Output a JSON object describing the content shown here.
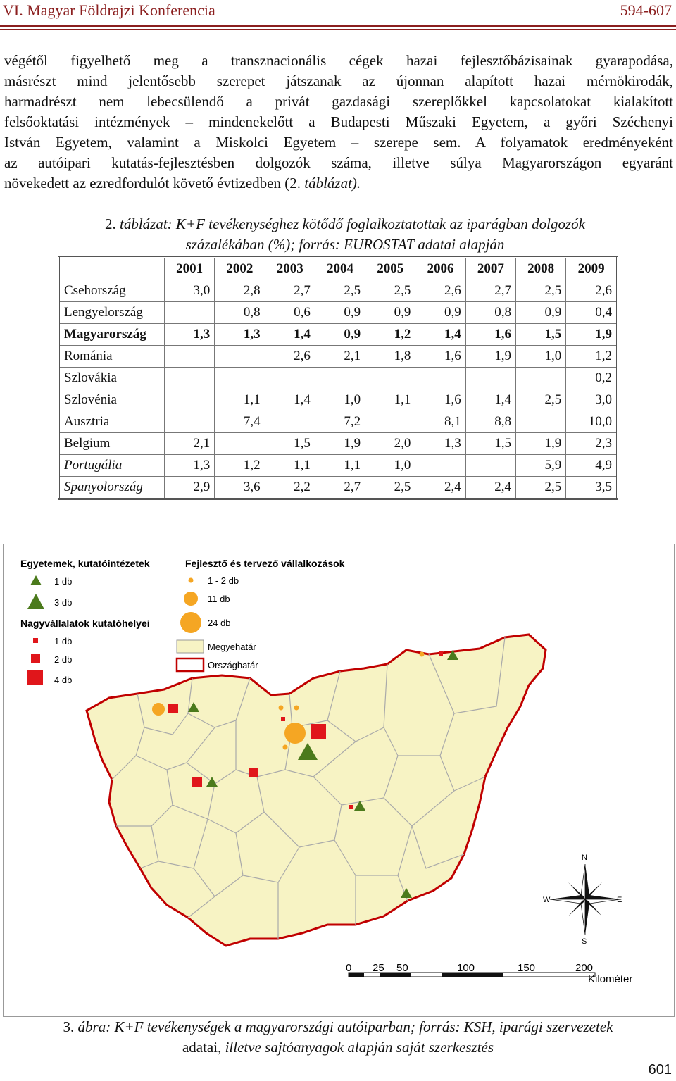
{
  "header": {
    "conference": "VI. Magyar Földrajzi Konferencia",
    "pages": "594-607"
  },
  "paragraph": {
    "lines": [
      "végétől figyelhető meg a transznacionális cégek hazai fejlesztőbázisainak gyarapodása,",
      "másrészt mind jelentősebb szerepet játszanak az újonnan alapított hazai mérnökirodák,",
      "harmadrészt nem lebecsülendő a privát gazdasági szereplőkkel kapcsolatokat kialakított",
      "felsőoktatási intézmények – mindenekelőtt a Budapesti Műszaki Egyetem, a győri Széchenyi",
      "István Egyetem, valamint a Miskolci Egyetem – szerepe sem. A folyamatok eredményeként",
      "az autóipari kutatás-fejlesztésben dolgozók száma, illetve súlya Magyarországon egyaránt"
    ],
    "last_line_text": "növekedett az ezredfordulót követő évtizedben (2. ",
    "last_line_italic": "táblázat)."
  },
  "table_caption": {
    "number": "2. ",
    "line1": "táblázat: K+F tevékenységhez kötődő foglalkoztatottak az iparágban dolgozók",
    "line2": "százalékában (%); forrás: EUROSTAT adatai alapján"
  },
  "table": {
    "years": [
      "2001",
      "2002",
      "2003",
      "2004",
      "2005",
      "2006",
      "2007",
      "2008",
      "2009"
    ],
    "rows": [
      {
        "name": "Csehország",
        "values": [
          "3,0",
          "2,8",
          "2,7",
          "2,5",
          "2,5",
          "2,6",
          "2,7",
          "2,5",
          "2,6"
        ],
        "style": "normal"
      },
      {
        "name": "Lengyelország",
        "values": [
          "",
          "0,8",
          "0,6",
          "0,9",
          "0,9",
          "0,9",
          "0,8",
          "0,9",
          "0,4"
        ],
        "style": "normal"
      },
      {
        "name": "Magyarország",
        "values": [
          "1,3",
          "1,3",
          "1,4",
          "0,9",
          "1,2",
          "1,4",
          "1,6",
          "1,5",
          "1,9"
        ],
        "style": "bold"
      },
      {
        "name": "Románia",
        "values": [
          "",
          "",
          "2,6",
          "2,1",
          "1,8",
          "1,6",
          "1,9",
          "1,0",
          "1,2"
        ],
        "style": "normal"
      },
      {
        "name": "Szlovákia",
        "values": [
          "",
          "",
          "",
          "",
          "",
          "",
          "",
          "",
          "0,2"
        ],
        "style": "normal"
      },
      {
        "name": "Szlovénia",
        "values": [
          "",
          "1,1",
          "1,4",
          "1,0",
          "1,1",
          "1,6",
          "1,4",
          "2,5",
          "3,0"
        ],
        "style": "normal"
      },
      {
        "name": "Ausztria",
        "values": [
          "",
          "7,4",
          "",
          "7,2",
          "",
          "8,1",
          "8,8",
          "",
          "10,0"
        ],
        "style": "normal"
      },
      {
        "name": "Belgium",
        "values": [
          "2,1",
          "",
          "1,5",
          "1,9",
          "2,0",
          "1,3",
          "1,5",
          "1,9",
          "2,3"
        ],
        "style": "normal"
      },
      {
        "name": "Portugália",
        "values": [
          "1,3",
          "1,2",
          "1,1",
          "1,1",
          "1,0",
          "",
          "",
          "5,9",
          "4,9"
        ],
        "style": "italic"
      },
      {
        "name": "Spanyolország",
        "values": [
          "2,9",
          "3,6",
          "2,2",
          "2,7",
          "2,5",
          "2,4",
          "2,4",
          "2,5",
          "3,5"
        ],
        "style": "italic"
      }
    ]
  },
  "map": {
    "legend": {
      "universities_title": "Egyetemek, kutatóintézetek",
      "univ_1": "1 db",
      "univ_3": "3 db",
      "dev_title": "Fejlesztő és tervező vállalkozások",
      "dev_1": "1 - 2 db",
      "dev_11": "11 db",
      "dev_24": "24 db",
      "large_title": "Nagyvállalatok kutatóhelyei",
      "large_1": "1 db",
      "large_2": "2 db",
      "large_4": "4 db",
      "county": "Megyehatár",
      "country": "Országhatár"
    },
    "compass": {
      "n": "N",
      "s": "S",
      "e": "E",
      "w": "W"
    },
    "scale": {
      "ticks": [
        "0",
        "25",
        "50",
        "100",
        "150",
        "200"
      ],
      "unit": "Kilométer"
    },
    "colors": {
      "land": "#f7f3c4",
      "border": "#c00000",
      "county": "#aaaaaa",
      "triangle": "#4b7a1c",
      "square": "#e0161b",
      "circle": "#f5a623"
    }
  },
  "figure_caption": {
    "number": "3. ",
    "line1": "ábra: K+F tevékenységek a magyarországi autóiparban; forrás: KSH, iparági szervezetek",
    "line2a": "adatai",
    "line2b": ", illetve sajtóanyagok alapján saját szerkesztés"
  },
  "page_number": "601"
}
